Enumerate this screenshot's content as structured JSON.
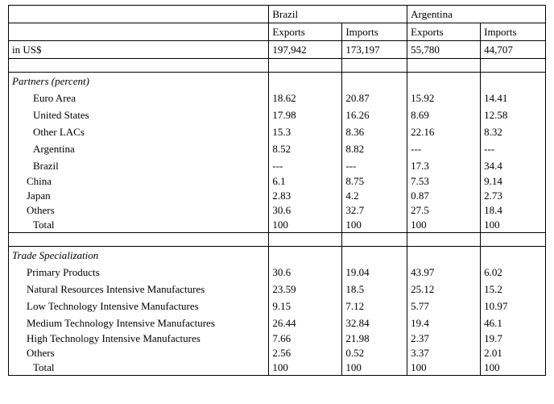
{
  "header": {
    "brazil": "Brazil",
    "argentina": "Argentina",
    "exports": "Exports",
    "imports": "Imports"
  },
  "usd_label": "in US$",
  "usd": {
    "b_exp": "197,942",
    "b_imp": "173,197",
    "a_exp": "55,780",
    "a_imp": "44,707"
  },
  "section1": "Partners (percent)",
  "partners": {
    "euro": {
      "label": "Euro Area",
      "b_exp": "18.62",
      "b_imp": "20.87",
      "a_exp": "15.92",
      "a_imp": "14.41"
    },
    "us": {
      "label": "United States",
      "b_exp": "17.98",
      "b_imp": "16.26",
      "a_exp": "8.69",
      "a_imp": "12.58"
    },
    "lac": {
      "label": "Other LACs",
      "b_exp": "15.3",
      "b_imp": "8.36",
      "a_exp": "22.16",
      "a_imp": "8.32"
    },
    "arg": {
      "label": "Argentina",
      "b_exp": "8.52",
      "b_imp": "8.82",
      "a_exp": " ---",
      "a_imp": " ---"
    },
    "bra": {
      "label": "Brazil",
      "b_exp": " ---",
      "b_imp": " ---",
      "a_exp": "17.3",
      "a_imp": "34.4"
    },
    "china": {
      "label": "China",
      "b_exp": "6.1",
      "b_imp": "8.75",
      "a_exp": "7.53",
      "a_imp": "9.14"
    },
    "japan": {
      "label": "Japan",
      "b_exp": "2.83",
      "b_imp": "4.2",
      "a_exp": "0.87",
      "a_imp": "2.73"
    },
    "others": {
      "label": "Others",
      "b_exp": "30.6",
      "b_imp": "32.7",
      "a_exp": "27.5",
      "a_imp": "18.4"
    },
    "total": {
      "label": "Total",
      "b_exp": "100",
      "b_imp": "100",
      "a_exp": "100",
      "a_imp": "100"
    }
  },
  "section2": "Trade Specialization",
  "trade": {
    "primary": {
      "label": "Primary Products",
      "b_exp": "30.6",
      "b_imp": "19.04",
      "a_exp": "43.97",
      "a_imp": "6.02"
    },
    "natres": {
      "label": "Natural Resources Intensive Manufactures",
      "b_exp": "23.59",
      "b_imp": "18.5",
      "a_exp": "25.12",
      "a_imp": "15.2"
    },
    "lowtech": {
      "label": "Low Technology Intensive Manufactures",
      "b_exp": "9.15",
      "b_imp": "7.12",
      "a_exp": "5.77",
      "a_imp": "10.97"
    },
    "medtech": {
      "label": "Medium Technology Intensive Manufactures",
      "b_exp": "26.44",
      "b_imp": "32.84",
      "a_exp": "19.4",
      "a_imp": "46.1"
    },
    "hitech": {
      "label": "High Technology Intensive Manufactures",
      "b_exp": "7.66",
      "b_imp": "21.98",
      "a_exp": "2.37",
      "a_imp": "19.7"
    },
    "others": {
      "label": "Others",
      "b_exp": "2.56",
      "b_imp": "0.52",
      "a_exp": "3.37",
      "a_imp": "2.01"
    },
    "total": {
      "label": "Total",
      "b_exp": "100",
      "b_imp": "100",
      "a_exp": "100",
      "a_imp": "100"
    }
  }
}
